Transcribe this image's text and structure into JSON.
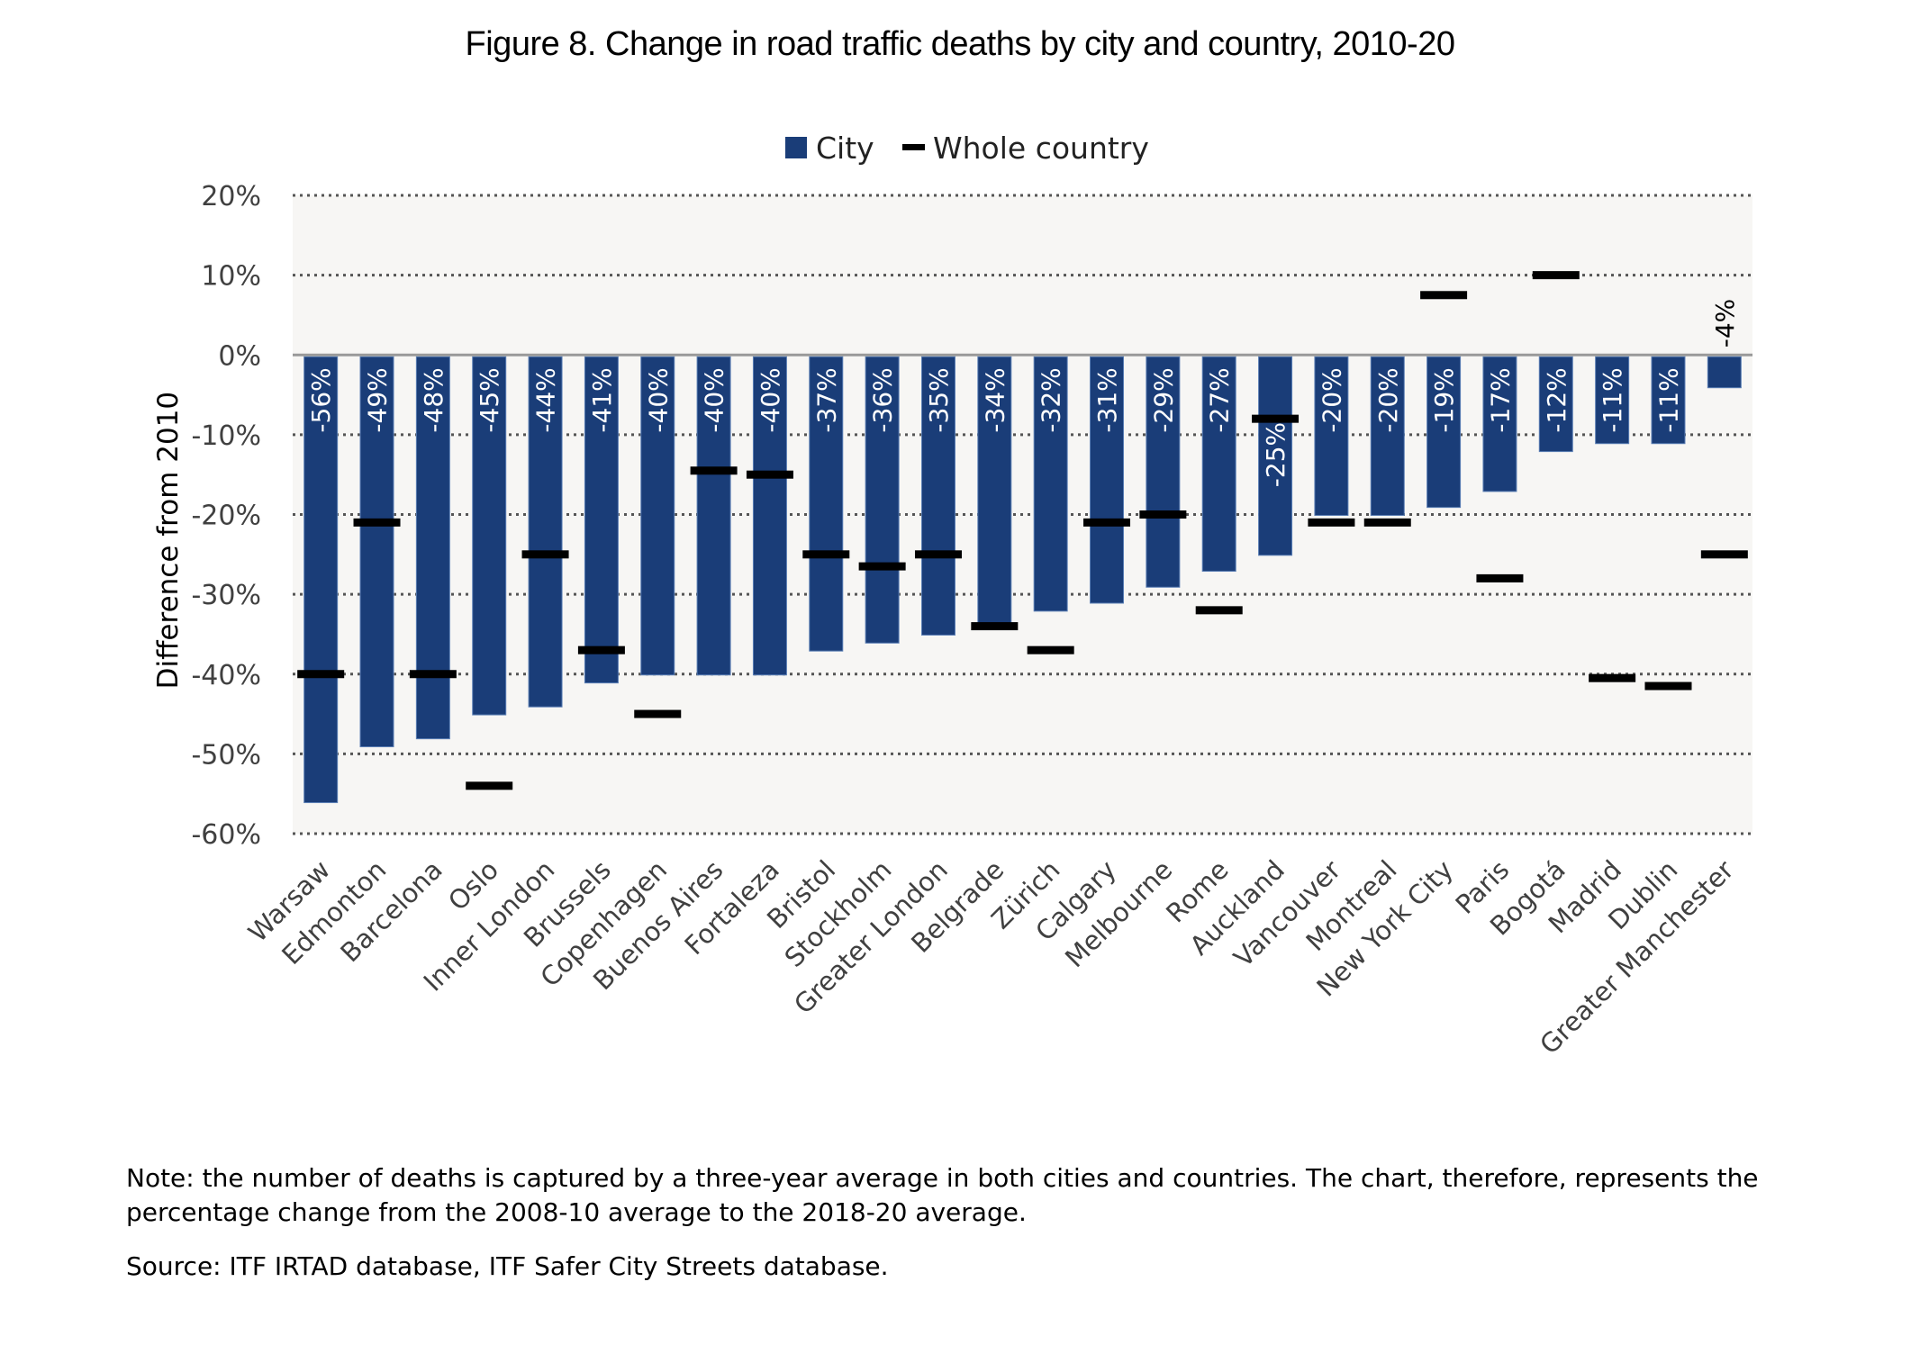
{
  "title": "Figure 8. Change in road traffic deaths by city and country, 2010-20",
  "note": "Note: the number of deaths is captured by a three-year average in both cities and countries. The chart, therefore, represents the percentage change from the 2008-10 average to the 2018-20 average.",
  "source": "Source: ITF IRTAD database, ITF Safer City Streets database.",
  "colors": {
    "city": "#1a3d78",
    "country": "#000000",
    "plot_background": "#f7f6f4",
    "gridline": "#555555",
    "zero_line": "#999999",
    "label_inside": "#ffffff",
    "label_outside": "#000000"
  },
  "chart_data": {
    "type": "bar",
    "title": "Figure 8. Change in road traffic deaths by city and country, 2010-20",
    "xlabel": "",
    "ylabel": "Difference from 2010",
    "ylim": [
      -60,
      20
    ],
    "yticks": [
      20,
      10,
      0,
      -10,
      -20,
      -30,
      -40,
      -50,
      -60
    ],
    "ytick_labels": [
      "20%",
      "10%",
      "0%",
      "-10%",
      "-20%",
      "-30%",
      "-40%",
      "-50%",
      "-60%"
    ],
    "grid": true,
    "legend": {
      "position": "top-center",
      "entries": [
        {
          "name": "City",
          "marker": "square"
        },
        {
          "name": "Whole country",
          "marker": "dash"
        }
      ]
    },
    "categories": [
      "Warsaw",
      "Edmonton",
      "Barcelona",
      "Oslo",
      "Inner London",
      "Brussels",
      "Copenhagen",
      "Buenos Aires",
      "Fortaleza",
      "Bristol",
      "Stockholm",
      "Greater London",
      "Belgrade",
      "Zürich",
      "Calgary",
      "Melbourne",
      "Rome",
      "Auckland",
      "Vancouver",
      "Montreal",
      "New York City",
      "Paris",
      "Bogotá",
      "Madrid",
      "Dublin",
      "Greater Manchester"
    ],
    "series": [
      {
        "name": "City",
        "type": "bar",
        "values": [
          -56,
          -49,
          -48,
          -45,
          -44,
          -41,
          -40,
          -40,
          -40,
          -37,
          -36,
          -35,
          -34,
          -32,
          -31,
          -29,
          -27,
          -25,
          -20,
          -20,
          -19,
          -17,
          -12,
          -11,
          -11,
          -4
        ],
        "labels": [
          "-56%",
          "-49%",
          "-48%",
          "-45%",
          "-44%",
          "-41%",
          "-40%",
          "-40%",
          "-40%",
          "-37%",
          "-36%",
          "-35%",
          "-34%",
          "-32%",
          "-31%",
          "-29%",
          "-27%",
          "-25%",
          "-20%",
          "-20%",
          "-19%",
          "-17%",
          "-12%",
          "-11%",
          "-11%",
          "-4%"
        ]
      },
      {
        "name": "Whole country",
        "type": "marker",
        "values": [
          -40,
          -21,
          -40,
          -54,
          -25,
          -37,
          -45,
          -14.5,
          -15,
          -25,
          -26.5,
          -25,
          -34,
          -37,
          -21,
          -20,
          -32,
          -8,
          -21,
          -21,
          7.5,
          -28,
          10,
          -40.5,
          -41.5,
          -25
        ]
      }
    ]
  }
}
